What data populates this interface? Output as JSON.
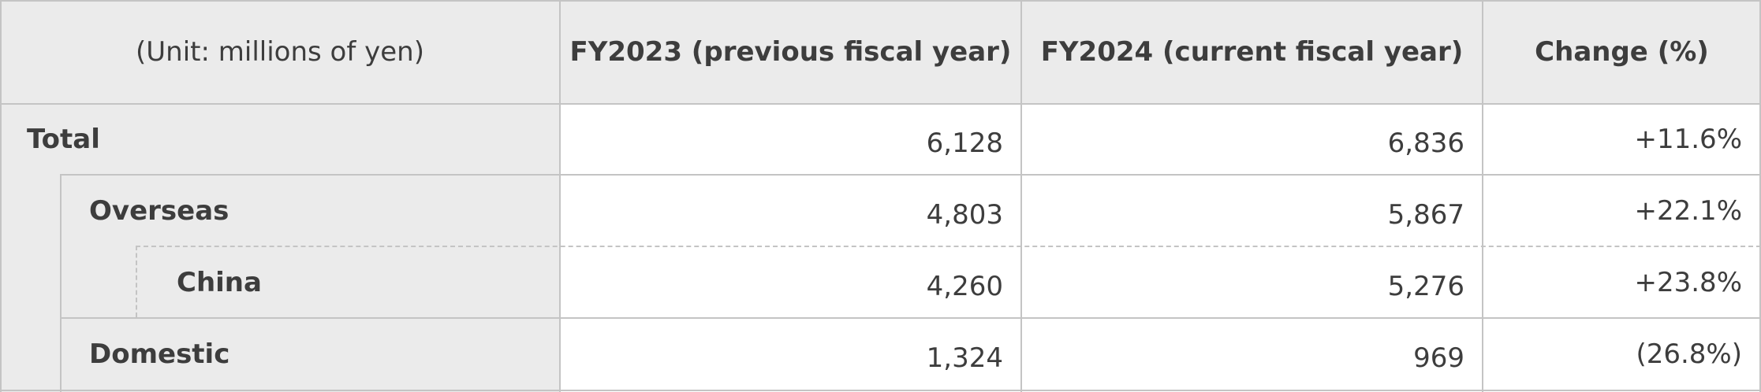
{
  "table": {
    "unit_label": "(Unit: millions of yen)",
    "columns": [
      "FY2023 (previous fiscal year)",
      "FY2024 (current fiscal year)",
      "Change (%)"
    ],
    "rows": [
      {
        "label": "Total",
        "fy2023": "6,128",
        "fy2024": "6,836",
        "change": "+11.6%"
      },
      {
        "label": "Overseas",
        "fy2023": "4,803",
        "fy2024": "5,867",
        "change": "+22.1%"
      },
      {
        "label": "China",
        "fy2023": "4,260",
        "fy2024": "5,276",
        "change": "+23.8%"
      },
      {
        "label": "Domestic",
        "fy2023": "1,324",
        "fy2024": "969",
        "change": "(26.8%)"
      }
    ]
  }
}
